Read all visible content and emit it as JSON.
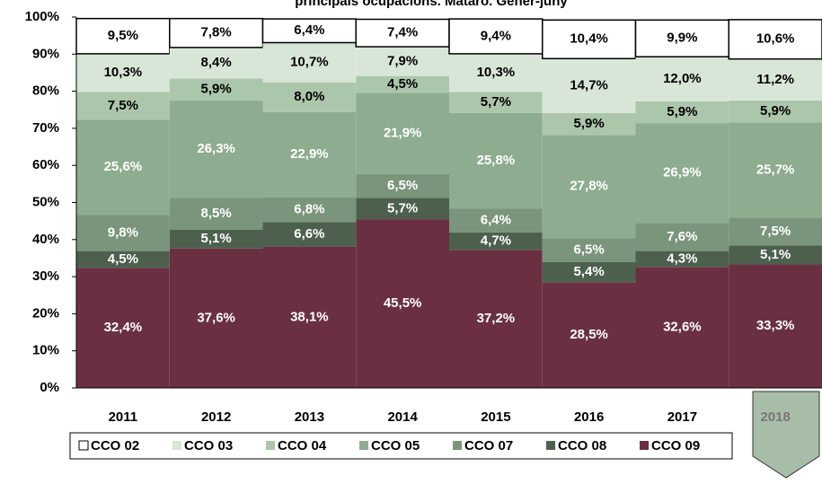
{
  "chart_data": {
    "type": "stacked_bar",
    "title": "principals ocupacions. Mataró. Gener-juny",
    "categories": [
      "2011",
      "2012",
      "2013",
      "2014",
      "2015",
      "2016",
      "2017",
      "2018"
    ],
    "series": [
      {
        "name": "CCO 09",
        "color": "#6a3042",
        "values": [
          32.4,
          37.6,
          38.1,
          45.5,
          37.2,
          28.5,
          32.6,
          33.3
        ],
        "value_labels": [
          "32,4%",
          "37,6%",
          "38,1%",
          "45,5%",
          "37,2%",
          "28,5%",
          "32,6%",
          "33,3%"
        ]
      },
      {
        "name": "CCO 08",
        "color": "#4d604e",
        "values": [
          4.5,
          5.1,
          6.6,
          5.7,
          4.7,
          5.4,
          4.3,
          5.1
        ],
        "value_labels": [
          "4,5%",
          "5,1%",
          "6,6%",
          "5,7%",
          "4,7%",
          "5,4%",
          "4,3%",
          "5,1%"
        ]
      },
      {
        "name": "CCO 07",
        "color": "#7a957b",
        "values": [
          9.8,
          8.5,
          6.8,
          6.5,
          6.4,
          6.5,
          7.6,
          7.5
        ],
        "value_labels": [
          "9,8%",
          "8,5%",
          "6,8%",
          "6,5%",
          "6,4%",
          "6,5%",
          "7,6%",
          "7,5%"
        ]
      },
      {
        "name": "CCO 05",
        "color": "#8eac8f",
        "values": [
          25.6,
          26.3,
          22.9,
          21.9,
          25.8,
          27.8,
          26.9,
          25.7
        ],
        "value_labels": [
          "25,6%",
          "26,3%",
          "22,9%",
          "21,9%",
          "25,8%",
          "27,8%",
          "26,9%",
          "25,7%"
        ]
      },
      {
        "name": "CCO 04",
        "color": "#acc6ab",
        "values": [
          7.5,
          5.9,
          8.0,
          4.5,
          5.7,
          5.9,
          5.9,
          5.9
        ],
        "value_labels": [
          "7,5%",
          "5,9%",
          "8,0%",
          "4,5%",
          "5,7%",
          "5,9%",
          "5,9%",
          "5,9%"
        ]
      },
      {
        "name": "CCO 03",
        "color": "#d8e6d8",
        "values": [
          10.3,
          8.4,
          10.7,
          7.9,
          10.3,
          14.7,
          12.0,
          11.2
        ],
        "value_labels": [
          "10,3%",
          "8,4%",
          "10,7%",
          "7,9%",
          "10,3%",
          "14,7%",
          "12,0%",
          "11,2%"
        ]
      },
      {
        "name": "CCO 02",
        "color": "#ffffff",
        "values": [
          9.5,
          7.8,
          6.4,
          7.4,
          9.4,
          10.4,
          9.9,
          10.6
        ],
        "value_labels": [
          "9,5%",
          "7,8%",
          "6,4%",
          "7,4%",
          "9,4%",
          "10,4%",
          "9,9%",
          "10,6%"
        ]
      }
    ],
    "ylim": [
      0,
      100
    ],
    "yticks": [
      {
        "value": 0,
        "label": "0%"
      },
      {
        "value": 10,
        "label": "10%"
      },
      {
        "value": 20,
        "label": "20%"
      },
      {
        "value": 30,
        "label": "30%"
      },
      {
        "value": 40,
        "label": "40%"
      },
      {
        "value": 50,
        "label": "50%"
      },
      {
        "value": 60,
        "label": "60%"
      },
      {
        "value": 70,
        "label": "70%"
      },
      {
        "value": 80,
        "label": "80%"
      },
      {
        "value": 90,
        "label": "90%"
      },
      {
        "value": 100,
        "label": "100%"
      }
    ],
    "legend": "bottom"
  }
}
